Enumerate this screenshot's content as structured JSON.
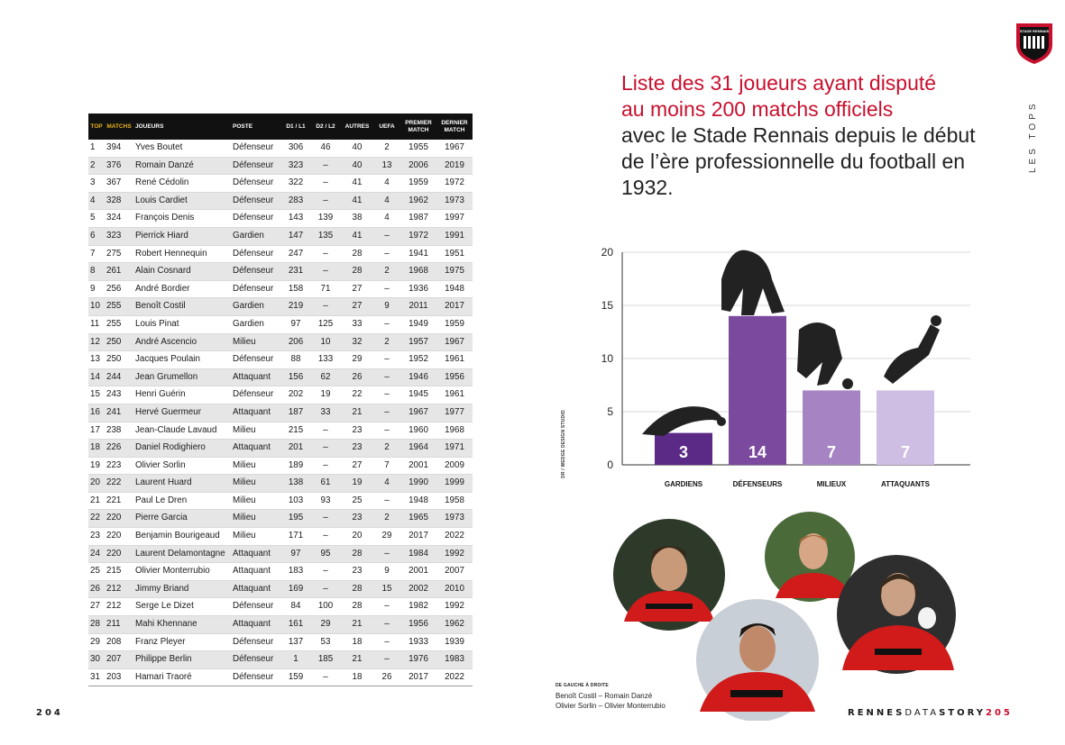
{
  "left_page": {
    "page_number": "204",
    "table": {
      "headers": [
        "TOP",
        "MATCHS",
        "JOUEURS",
        "POSTE",
        "D1 / L1",
        "D2 / L2",
        "AUTRES",
        "UEFA",
        "PREMIER MATCH",
        "DERNIER MATCH"
      ],
      "rows": [
        [
          "1",
          "394",
          "Yves Boutet",
          "Défenseur",
          "306",
          "46",
          "40",
          "2",
          "1955",
          "1967"
        ],
        [
          "2",
          "376",
          "Romain Danzé",
          "Défenseur",
          "323",
          "–",
          "40",
          "13",
          "2006",
          "2019"
        ],
        [
          "3",
          "367",
          "René Cédolin",
          "Défenseur",
          "322",
          "–",
          "41",
          "4",
          "1959",
          "1972"
        ],
        [
          "4",
          "328",
          "Louis Cardiet",
          "Défenseur",
          "283",
          "–",
          "41",
          "4",
          "1962",
          "1973"
        ],
        [
          "5",
          "324",
          "François Denis",
          "Défenseur",
          "143",
          "139",
          "38",
          "4",
          "1987",
          "1997"
        ],
        [
          "6",
          "323",
          "Pierrick Hiard",
          "Gardien",
          "147",
          "135",
          "41",
          "–",
          "1972",
          "1991"
        ],
        [
          "7",
          "275",
          "Robert Hennequin",
          "Défenseur",
          "247",
          "–",
          "28",
          "–",
          "1941",
          "1951"
        ],
        [
          "8",
          "261",
          "Alain Cosnard",
          "Défenseur",
          "231",
          "–",
          "28",
          "2",
          "1968",
          "1975"
        ],
        [
          "9",
          "256",
          "André Bordier",
          "Défenseur",
          "158",
          "71",
          "27",
          "–",
          "1936",
          "1948"
        ],
        [
          "10",
          "255",
          "Benoît Costil",
          "Gardien",
          "219",
          "–",
          "27",
          "9",
          "2011",
          "2017"
        ],
        [
          "11",
          "255",
          "Louis Pinat",
          "Gardien",
          "97",
          "125",
          "33",
          "–",
          "1949",
          "1959"
        ],
        [
          "12",
          "250",
          "André Ascencio",
          "Milieu",
          "206",
          "10",
          "32",
          "2",
          "1957",
          "1967"
        ],
        [
          "13",
          "250",
          "Jacques Poulain",
          "Défenseur",
          "88",
          "133",
          "29",
          "–",
          "1952",
          "1961"
        ],
        [
          "14",
          "244",
          "Jean Grumellon",
          "Attaquant",
          "156",
          "62",
          "26",
          "–",
          "1946",
          "1956"
        ],
        [
          "15",
          "243",
          "Henri Guérin",
          "Défenseur",
          "202",
          "19",
          "22",
          "–",
          "1945",
          "1961"
        ],
        [
          "16",
          "241",
          "Hervé Guermeur",
          "Attaquant",
          "187",
          "33",
          "21",
          "–",
          "1967",
          "1977"
        ],
        [
          "17",
          "238",
          "Jean-Claude Lavaud",
          "Milieu",
          "215",
          "–",
          "23",
          "–",
          "1960",
          "1968"
        ],
        [
          "18",
          "226",
          "Daniel Rodighiero",
          "Attaquant",
          "201",
          "–",
          "23",
          "2",
          "1964",
          "1971"
        ],
        [
          "19",
          "223",
          "Olivier Sorlin",
          "Milieu",
          "189",
          "–",
          "27",
          "7",
          "2001",
          "2009"
        ],
        [
          "20",
          "222",
          "Laurent Huard",
          "Milieu",
          "138",
          "61",
          "19",
          "4",
          "1990",
          "1999"
        ],
        [
          "21",
          "221",
          "Paul Le Dren",
          "Milieu",
          "103",
          "93",
          "25",
          "–",
          "1948",
          "1958"
        ],
        [
          "22",
          "220",
          "Pierre Garcia",
          "Milieu",
          "195",
          "–",
          "23",
          "2",
          "1965",
          "1973"
        ],
        [
          "23",
          "220",
          "Benjamin Bourigeaud",
          "Milieu",
          "171",
          "–",
          "20",
          "29",
          "2017",
          "2022"
        ],
        [
          "24",
          "220",
          "Laurent Delamontagne",
          "Attaquant",
          "97",
          "95",
          "28",
          "–",
          "1984",
          "1992"
        ],
        [
          "25",
          "215",
          "Olivier Monterrubio",
          "Attaquant",
          "183",
          "–",
          "23",
          "9",
          "2001",
          "2007"
        ],
        [
          "26",
          "212",
          "Jimmy Briand",
          "Attaquant",
          "169",
          "–",
          "28",
          "15",
          "2002",
          "2010"
        ],
        [
          "27",
          "212",
          "Serge Le Dizet",
          "Défenseur",
          "84",
          "100",
          "28",
          "–",
          "1982",
          "1992"
        ],
        [
          "28",
          "211",
          "Mahi Khennane",
          "Attaquant",
          "161",
          "29",
          "21",
          "–",
          "1956",
          "1962"
        ],
        [
          "29",
          "208",
          "Franz Pleyer",
          "Défenseur",
          "137",
          "53",
          "18",
          "–",
          "1933",
          "1939"
        ],
        [
          "30",
          "207",
          "Philippe Berlin",
          "Défenseur",
          "1",
          "185",
          "21",
          "–",
          "1976",
          "1983"
        ],
        [
          "31",
          "203",
          "Hamari Traoré",
          "Défenseur",
          "159",
          "–",
          "18",
          "26",
          "2017",
          "2022"
        ]
      ]
    }
  },
  "right_page": {
    "title_red": [
      "Liste des 31 joueurs ayant disputé",
      "au moins 200 matchs officiels"
    ],
    "title_black": [
      "avec le Stade Rennais depuis le début",
      "de l’ère professionnelle du football en 1932."
    ],
    "side_label": "LES TOPS",
    "crest_text": "STADE RENNAIS",
    "photo_credit": "DR / WEDGE DESIGN STUDIO",
    "caption_title": "DE GAUCHE À DROITE",
    "caption_lines": [
      "Benoît Costil – Romain Danzé",
      "Olivier Sorlin – Olivier Monterrubio"
    ],
    "footer": {
      "brand_a": "RENNES",
      "brand_b": "DATA",
      "brand_c": "STORY",
      "page_number": "205"
    },
    "colors": {
      "accent_red": "#c8102e",
      "gold": "#e8b21a"
    }
  },
  "chart_data": {
    "type": "bar",
    "categories": [
      "GARDIENS",
      "DÉFENSEURS",
      "MILIEUX",
      "ATTAQUANTS"
    ],
    "values": [
      3,
      14,
      7,
      7
    ],
    "colors": [
      "#5b2a86",
      "#7b4a9e",
      "#a684c4",
      "#cfbee3"
    ],
    "ylim": [
      0,
      20
    ],
    "yticks": [
      0,
      5,
      10,
      15,
      20
    ],
    "grid": true,
    "title": "",
    "xlabel": "",
    "ylabel": ""
  }
}
